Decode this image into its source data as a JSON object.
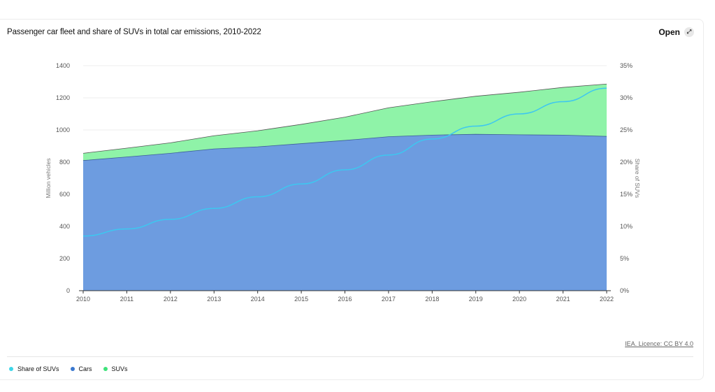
{
  "header": {
    "title": "Passenger car fleet and share of SUVs in total car emissions, 2010-2022",
    "open_label": "Open",
    "open_icon": "expand-icon"
  },
  "credit": "IEA. Licence: CC BY 4.0",
  "legend": [
    {
      "label": "Share of SUVs",
      "color": "#3dd6e8"
    },
    {
      "label": "Cars",
      "color": "#3a78cf"
    },
    {
      "label": "SUVs",
      "color": "#3ee27a"
    }
  ],
  "colors": {
    "cars_fill": "#6d9ce0",
    "suvs_fill": "#8ff3a8",
    "share_line": "#3dc7f0"
  },
  "chart_data": {
    "type": "area",
    "x": [
      "2010",
      "2011",
      "2012",
      "2013",
      "2014",
      "2015",
      "2016",
      "2017",
      "2018",
      "2019",
      "2020",
      "2021",
      "2022"
    ],
    "series": [
      {
        "name": "Cars",
        "axis": "left",
        "values": [
          810,
          832,
          855,
          882,
          895,
          915,
          935,
          958,
          968,
          973,
          970,
          968,
          960
        ]
      },
      {
        "name": "SUVs",
        "axis": "left",
        "values": [
          45,
          55,
          65,
          82,
          100,
          120,
          145,
          180,
          208,
          237,
          265,
          297,
          326
        ]
      },
      {
        "name": "Share of SUVs",
        "axis": "right",
        "type": "line",
        "values": [
          8.5,
          9.6,
          11.1,
          12.8,
          14.6,
          16.6,
          18.8,
          21.1,
          23.6,
          25.6,
          27.5,
          29.4,
          31.5
        ]
      }
    ],
    "ylabel": "Million vehicles",
    "ylim": [
      0,
      1400
    ],
    "yticks": [
      "0",
      "200",
      "400",
      "600",
      "800",
      "1000",
      "1200",
      "1400"
    ],
    "y2label": "Share of SUVs",
    "y2lim": [
      0,
      35
    ],
    "y2ticks": [
      "0%",
      "5%",
      "10%",
      "15%",
      "20%",
      "25%",
      "30%",
      "35%"
    ],
    "stacked": true,
    "grid": true
  }
}
